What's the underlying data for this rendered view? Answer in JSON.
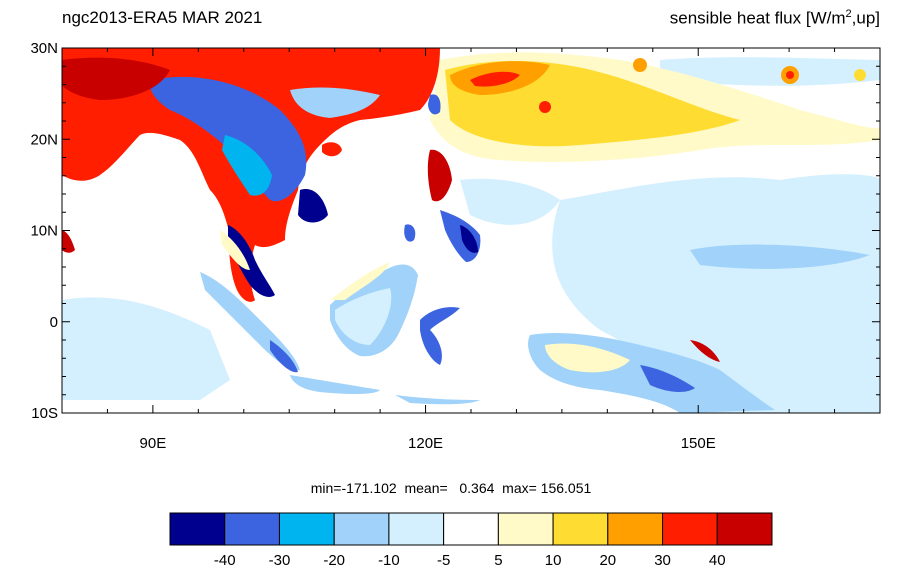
{
  "title": {
    "left": "ngc2013-ERA5  MAR 2021",
    "right_main": "sensible heat flux [W/m",
    "right_sup": "2",
    "right_tail": ",up]"
  },
  "map": {
    "lon_range": [
      80,
      170
    ],
    "lat_range": [
      -10,
      30
    ],
    "lat_ticks": [
      {
        "v": 30,
        "label": "30N"
      },
      {
        "v": 20,
        "label": "20N"
      },
      {
        "v": 10,
        "label": "10N"
      },
      {
        "v": 0,
        "label": "0"
      },
      {
        "v": -10,
        "label": "10S"
      }
    ],
    "lon_ticks": [
      {
        "v": 90,
        "label": "90E"
      },
      {
        "v": 120,
        "label": "120E"
      },
      {
        "v": 150,
        "label": "150E"
      }
    ]
  },
  "stats": {
    "text": "min=-171.102  mean=   0.364  max= 156.051"
  },
  "colorbar": {
    "colors": [
      "#00008f",
      "#3c64e0",
      "#00b4f0",
      "#a0d2fa",
      "#d4f0ff",
      "#ffffff",
      "#fffac8",
      "#ffdc32",
      "#ffa000",
      "#ff1e00",
      "#c80000"
    ],
    "labels": [
      "-40",
      "-30",
      "-20",
      "-10",
      "-5",
      "5",
      "10",
      "20",
      "30",
      "40"
    ]
  }
}
